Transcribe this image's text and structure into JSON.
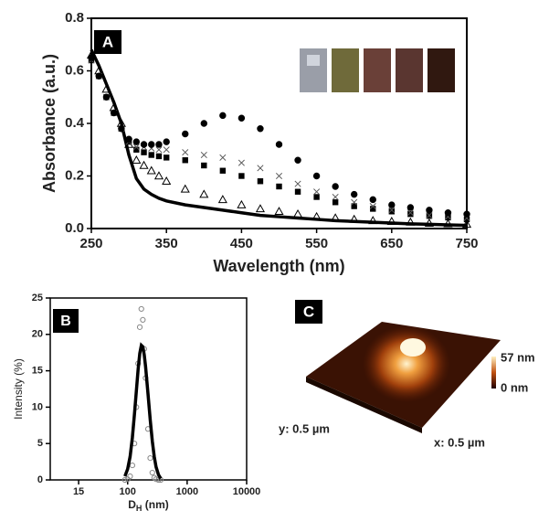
{
  "chart_data": [
    {
      "type": "line",
      "panel_label": "A",
      "xlabel": "Wavelength (nm)",
      "ylabel": "Absorbance (a.u.)",
      "x": [
        250,
        260,
        270,
        280,
        290,
        300,
        310,
        320,
        330,
        340,
        350,
        375,
        400,
        425,
        450,
        475,
        500,
        525,
        550,
        575,
        600,
        625,
        650,
        675,
        700,
        725,
        750
      ],
      "series": [
        {
          "marker": "line",
          "color": "#000000",
          "values": [
            0.68,
            0.62,
            0.55,
            0.48,
            0.4,
            0.28,
            0.19,
            0.15,
            0.13,
            0.115,
            0.105,
            0.09,
            0.08,
            0.07,
            0.06,
            0.05,
            0.045,
            0.04,
            0.035,
            0.03,
            0.027,
            0.024,
            0.021,
            0.018,
            0.016,
            0.014,
            0.012
          ]
        },
        {
          "marker": "triangle",
          "color": "#000000",
          "values": [
            0.66,
            0.6,
            0.53,
            0.46,
            0.4,
            0.32,
            0.26,
            0.24,
            0.22,
            0.2,
            0.18,
            0.15,
            0.13,
            0.11,
            0.09,
            0.075,
            0.065,
            0.055,
            0.045,
            0.04,
            0.035,
            0.03,
            0.027,
            0.024,
            0.02,
            0.018,
            0.016
          ]
        },
        {
          "marker": "square",
          "color": "#000000",
          "values": [
            0.64,
            0.58,
            0.5,
            0.44,
            0.38,
            0.33,
            0.3,
            0.29,
            0.28,
            0.275,
            0.27,
            0.26,
            0.24,
            0.22,
            0.2,
            0.18,
            0.16,
            0.14,
            0.12,
            0.1,
            0.085,
            0.075,
            0.065,
            0.055,
            0.048,
            0.042,
            0.035
          ]
        },
        {
          "marker": "cross",
          "color": "#555555",
          "values": [
            0.64,
            0.58,
            0.5,
            0.44,
            0.38,
            0.33,
            0.31,
            0.31,
            0.305,
            0.3,
            0.3,
            0.29,
            0.28,
            0.27,
            0.25,
            0.23,
            0.2,
            0.17,
            0.14,
            0.12,
            0.1,
            0.085,
            0.07,
            0.06,
            0.05,
            0.045,
            0.04
          ]
        },
        {
          "marker": "circle",
          "color": "#000000",
          "values": [
            0.65,
            0.58,
            0.5,
            0.44,
            0.38,
            0.34,
            0.33,
            0.32,
            0.32,
            0.32,
            0.33,
            0.36,
            0.4,
            0.43,
            0.42,
            0.38,
            0.32,
            0.26,
            0.2,
            0.16,
            0.13,
            0.11,
            0.09,
            0.08,
            0.07,
            0.06,
            0.055
          ]
        }
      ],
      "xlim": [
        250,
        750
      ],
      "xticks": [
        250,
        350,
        450,
        550,
        650,
        750
      ],
      "ylim": [
        0,
        0.8
      ],
      "yticks": [
        {
          "value": 0,
          "label": "0.0"
        },
        0.2,
        0.4,
        0.6,
        0.8
      ]
    },
    {
      "type": "line",
      "panel_label": "B",
      "xlabel": {
        "main": "D",
        "sub": "H",
        "rest": " (nm)"
      },
      "ylabel": "Intensity (%)",
      "xscale": "log",
      "x": [
        90,
        100,
        110,
        120,
        130,
        140,
        150,
        160,
        170,
        180,
        190,
        200,
        220,
        240,
        260,
        280,
        300,
        330,
        360
      ],
      "series": [
        {
          "marker": "circle",
          "color": "#888888",
          "values": [
            0,
            0.1,
            0.5,
            2,
            5,
            10,
            16,
            21,
            23.5,
            22,
            18,
            14,
            7,
            3,
            1,
            0.3,
            0.1,
            0,
            0
          ]
        },
        {
          "marker": "line",
          "color": "#000000",
          "values": [
            0.5,
            1.5,
            3.2,
            5.8,
            9,
            12.2,
            15.2,
            17.4,
            18.5,
            18.3,
            17.2,
            15.6,
            11.8,
            8.2,
            5.3,
            3.2,
            1.8,
            0.7,
            0.2
          ]
        }
      ],
      "xlim": [
        5,
        10000
      ],
      "xticks": [
        15,
        100,
        1000,
        10000
      ],
      "ylim": [
        0,
        25
      ],
      "yticks": [
        0,
        5,
        10,
        15,
        20,
        25
      ]
    }
  ],
  "image_panel": {
    "panel_label": "C",
    "z_max": "57 nm",
    "z_min": "0 nm",
    "y_size": "y: 0.5 µm",
    "x_size": "x: 0.5 µm"
  }
}
